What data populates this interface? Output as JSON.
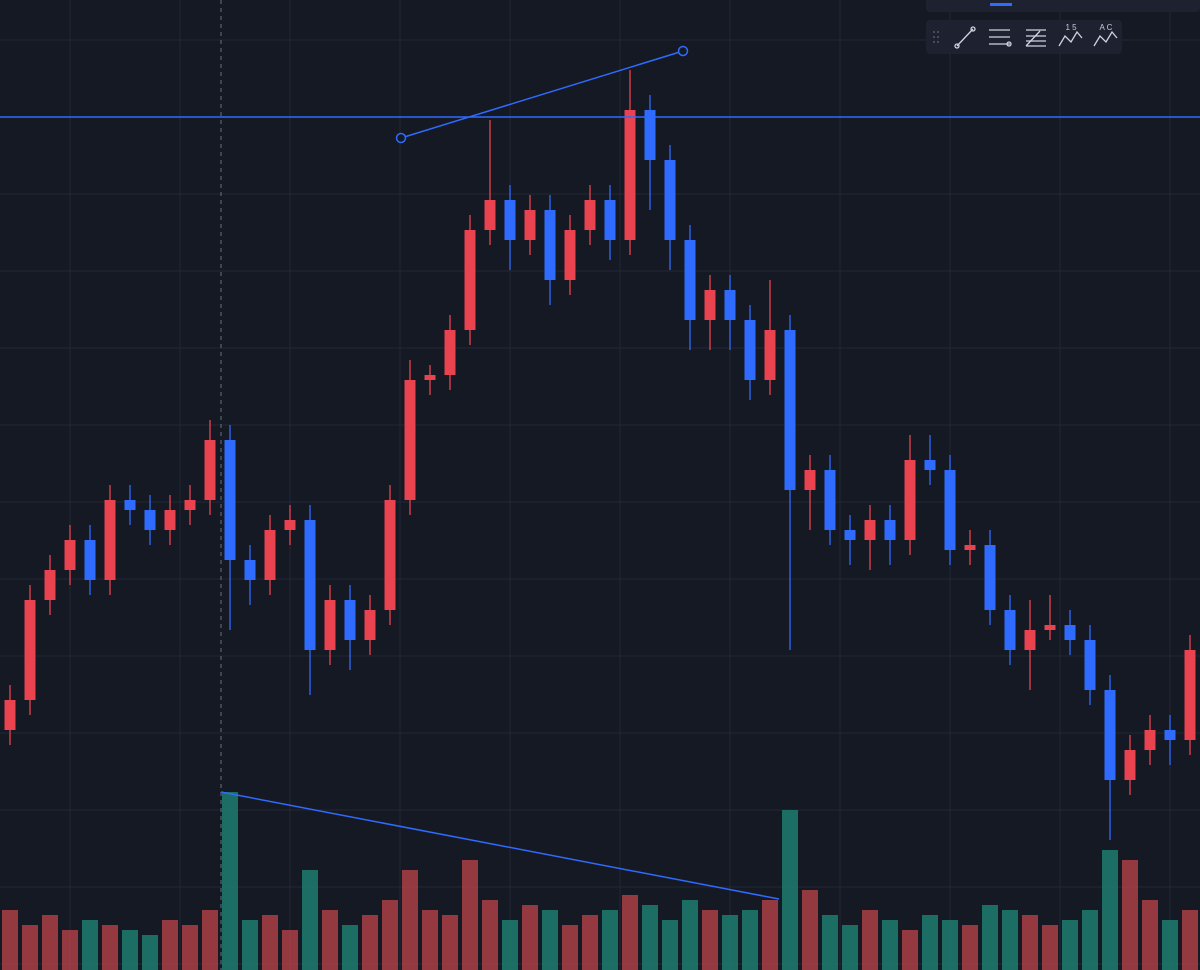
{
  "chart_data": {
    "type": "candlestick",
    "up_color": "#e8434f",
    "down_color": "#2f6bff",
    "volume_up_color": "#c0444b",
    "volume_down_color": "#1f8a7a",
    "ylim": [
      0,
      970
    ],
    "volume_lim": [
      0,
      200
    ],
    "open": [
      240,
      270,
      370,
      400,
      430,
      390,
      470,
      460,
      440,
      460,
      470,
      530,
      410,
      390,
      440,
      450,
      320,
      370,
      330,
      360,
      470,
      590,
      595,
      640,
      740,
      770,
      730,
      760,
      690,
      740,
      770,
      730,
      860,
      810,
      730,
      650,
      680,
      650,
      590,
      640,
      480,
      500,
      440,
      430,
      450,
      430,
      510,
      500,
      420,
      425,
      360,
      320,
      340,
      345,
      330,
      280,
      190,
      220,
      240,
      230
    ],
    "high": [
      285,
      385,
      415,
      445,
      445,
      485,
      485,
      475,
      475,
      485,
      550,
      545,
      425,
      455,
      465,
      465,
      385,
      385,
      375,
      485,
      610,
      605,
      655,
      755,
      850,
      785,
      775,
      775,
      755,
      785,
      785,
      900,
      875,
      825,
      745,
      695,
      695,
      665,
      690,
      655,
      515,
      515,
      455,
      465,
      465,
      535,
      535,
      515,
      440,
      440,
      375,
      370,
      375,
      360,
      345,
      295,
      235,
      255,
      255,
      335
    ],
    "low": [
      225,
      255,
      355,
      385,
      375,
      375,
      445,
      425,
      425,
      445,
      455,
      340,
      365,
      375,
      425,
      275,
      305,
      300,
      315,
      345,
      455,
      575,
      580,
      625,
      725,
      700,
      715,
      665,
      675,
      725,
      710,
      715,
      760,
      700,
      620,
      620,
      620,
      570,
      575,
      320,
      440,
      425,
      405,
      400,
      405,
      415,
      485,
      405,
      405,
      345,
      305,
      280,
      330,
      315,
      265,
      130,
      175,
      205,
      205,
      215
    ],
    "close": [
      270,
      370,
      400,
      430,
      390,
      470,
      460,
      440,
      460,
      470,
      530,
      410,
      390,
      440,
      450,
      320,
      370,
      330,
      360,
      470,
      590,
      595,
      640,
      740,
      770,
      730,
      760,
      690,
      740,
      770,
      730,
      860,
      810,
      730,
      650,
      680,
      650,
      590,
      640,
      480,
      500,
      440,
      430,
      450,
      430,
      510,
      500,
      420,
      425,
      360,
      320,
      340,
      345,
      330,
      280,
      190,
      220,
      240,
      230,
      320
    ],
    "volume": [
      60,
      45,
      55,
      40,
      50,
      45,
      40,
      35,
      50,
      45,
      60,
      178,
      50,
      55,
      40,
      100,
      60,
      45,
      55,
      70,
      100,
      60,
      55,
      110,
      70,
      50,
      65,
      60,
      45,
      55,
      60,
      75,
      65,
      50,
      70,
      60,
      55,
      60,
      70,
      160,
      80,
      55,
      45,
      60,
      50,
      40,
      55,
      50,
      45,
      65,
      60,
      55,
      45,
      50,
      60,
      120,
      110,
      70,
      50,
      60
    ]
  },
  "toolbar": {
    "labels": [
      "1 5",
      "A C"
    ]
  }
}
